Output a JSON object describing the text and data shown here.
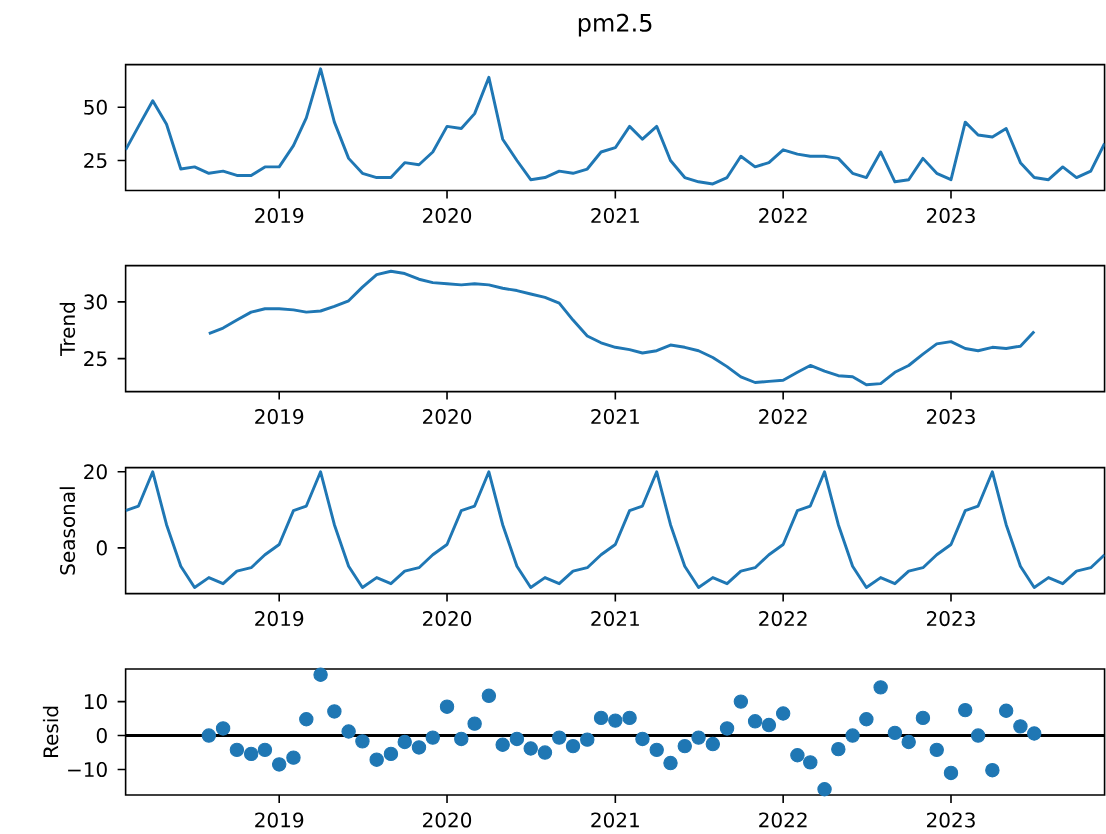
{
  "chart_data": [
    {
      "type": "line",
      "title": "pm2.5",
      "color": "#1f77b4",
      "x": [
        "2018-02",
        "2018-03",
        "2018-04",
        "2018-05",
        "2018-06",
        "2018-07",
        "2018-08",
        "2018-09",
        "2018-10",
        "2018-11",
        "2018-12",
        "2019-01",
        "2019-02",
        "2019-03",
        "2019-04",
        "2019-05",
        "2019-06",
        "2019-07",
        "2019-08",
        "2019-09",
        "2019-10",
        "2019-11",
        "2019-12",
        "2020-01",
        "2020-02",
        "2020-03",
        "2020-04",
        "2020-05",
        "2020-06",
        "2020-07",
        "2020-08",
        "2020-09",
        "2020-10",
        "2020-11",
        "2020-12",
        "2021-01",
        "2021-02",
        "2021-03",
        "2021-04",
        "2021-05",
        "2021-06",
        "2021-07",
        "2021-08",
        "2021-09",
        "2021-10",
        "2021-11",
        "2021-12",
        "2022-01",
        "2022-02",
        "2022-03",
        "2022-04",
        "2022-05",
        "2022-06",
        "2022-07",
        "2022-08",
        "2022-09",
        "2022-10",
        "2022-11",
        "2022-12",
        "2023-01",
        "2023-02",
        "2023-03",
        "2023-04",
        "2023-05",
        "2023-06",
        "2023-07",
        "2023-08",
        "2023-09",
        "2023-10",
        "2023-11",
        "2023-12"
      ],
      "values": [
        30,
        41,
        53,
        42,
        21,
        22,
        19,
        20,
        18,
        18,
        22,
        22,
        32,
        45,
        68,
        43,
        26,
        19,
        17,
        17,
        24,
        23,
        29,
        41,
        40,
        47,
        64,
        35,
        25,
        16,
        17,
        20,
        19,
        21,
        29,
        31,
        41,
        35,
        41,
        25,
        17,
        15,
        14,
        17,
        27,
        22,
        24,
        30,
        28,
        27,
        27,
        26,
        19,
        17,
        29,
        15,
        16,
        26,
        19,
        16,
        43,
        37,
        36,
        40,
        24,
        17,
        16,
        22,
        17,
        20,
        33
      ],
      "xlim": [
        "2018-02",
        "2023-12"
      ],
      "ylim": [
        10.9,
        70
      ],
      "xticks": [
        {
          "value": "2019-01",
          "label": "2019"
        },
        {
          "value": "2020-01",
          "label": "2020"
        },
        {
          "value": "2021-01",
          "label": "2021"
        },
        {
          "value": "2022-01",
          "label": "2022"
        },
        {
          "value": "2023-01",
          "label": "2023"
        }
      ],
      "yticks": [
        25,
        50
      ]
    },
    {
      "type": "line",
      "ylabel": "Trend",
      "color": "#1f77b4",
      "x": [
        "2018-08",
        "2018-09",
        "2018-10",
        "2018-11",
        "2018-12",
        "2019-01",
        "2019-02",
        "2019-03",
        "2019-04",
        "2019-05",
        "2019-06",
        "2019-07",
        "2019-08",
        "2019-09",
        "2019-10",
        "2019-11",
        "2019-12",
        "2020-01",
        "2020-02",
        "2020-03",
        "2020-04",
        "2020-05",
        "2020-06",
        "2020-07",
        "2020-08",
        "2020-09",
        "2020-10",
        "2020-11",
        "2020-12",
        "2021-01",
        "2021-02",
        "2021-03",
        "2021-04",
        "2021-05",
        "2021-06",
        "2021-07",
        "2021-08",
        "2021-09",
        "2021-10",
        "2021-11",
        "2021-12",
        "2022-01",
        "2022-02",
        "2022-03",
        "2022-04",
        "2022-05",
        "2022-06",
        "2022-07",
        "2022-08",
        "2022-09",
        "2022-10",
        "2022-11",
        "2022-12",
        "2023-01",
        "2023-02",
        "2023-03",
        "2023-04",
        "2023-05",
        "2023-06",
        "2023-07"
      ],
      "values": [
        27.2,
        27.7,
        28.4,
        29.1,
        29.4,
        29.4,
        29.3,
        29.1,
        29.2,
        29.6,
        30.1,
        31.3,
        32.4,
        32.7,
        32.5,
        32.0,
        31.7,
        31.6,
        31.5,
        31.6,
        31.5,
        31.2,
        31.0,
        30.7,
        30.4,
        29.9,
        28.4,
        27.0,
        26.4,
        26.0,
        25.8,
        25.5,
        25.7,
        26.2,
        26.0,
        25.7,
        25.1,
        24.3,
        23.4,
        22.9,
        23.0,
        23.1,
        23.8,
        24.4,
        23.9,
        23.5,
        23.4,
        22.7,
        22.8,
        23.8,
        24.4,
        25.4,
        26.3,
        26.5,
        25.9,
        25.7,
        26.0,
        25.9,
        26.1,
        27.4
      ],
      "xlim": [
        "2018-02",
        "2023-12"
      ],
      "ylim": [
        22.1,
        33.2
      ],
      "xticks": [
        {
          "value": "2019-01",
          "label": "2019"
        },
        {
          "value": "2020-01",
          "label": "2020"
        },
        {
          "value": "2021-01",
          "label": "2021"
        },
        {
          "value": "2022-01",
          "label": "2022"
        },
        {
          "value": "2023-01",
          "label": "2023"
        }
      ],
      "yticks": [
        25,
        30
      ]
    },
    {
      "type": "line",
      "ylabel": "Seasonal",
      "color": "#1f77b4",
      "x": [
        "2018-02",
        "2018-03",
        "2018-04",
        "2018-05",
        "2018-06",
        "2018-07",
        "2018-08",
        "2018-09",
        "2018-10",
        "2018-11",
        "2018-12",
        "2019-01",
        "2019-02",
        "2019-03",
        "2019-04",
        "2019-05",
        "2019-06",
        "2019-07",
        "2019-08",
        "2019-09",
        "2019-10",
        "2019-11",
        "2019-12",
        "2020-01",
        "2020-02",
        "2020-03",
        "2020-04",
        "2020-05",
        "2020-06",
        "2020-07",
        "2020-08",
        "2020-09",
        "2020-10",
        "2020-11",
        "2020-12",
        "2021-01",
        "2021-02",
        "2021-03",
        "2021-04",
        "2021-05",
        "2021-06",
        "2021-07",
        "2021-08",
        "2021-09",
        "2021-10",
        "2021-11",
        "2021-12",
        "2022-01",
        "2022-02",
        "2022-03",
        "2022-04",
        "2022-05",
        "2022-06",
        "2022-07",
        "2022-08",
        "2022-09",
        "2022-10",
        "2022-11",
        "2022-12",
        "2023-01",
        "2023-02",
        "2023-03",
        "2023-04",
        "2023-05",
        "2023-06",
        "2023-07",
        "2023-08",
        "2023-09",
        "2023-10",
        "2023-11",
        "2023-12"
      ],
      "values": [
        9.8,
        11,
        20,
        6.1,
        -4.8,
        -10.4,
        -7.8,
        -9.4,
        -6.1,
        -5.2,
        -1.8,
        0.9,
        9.8,
        11,
        20,
        6.1,
        -4.8,
        -10.4,
        -7.8,
        -9.4,
        -6.1,
        -5.2,
        -1.8,
        0.9,
        9.8,
        11,
        20,
        6.1,
        -4.8,
        -10.4,
        -7.8,
        -9.4,
        -6.1,
        -5.2,
        -1.8,
        0.9,
        9.8,
        11,
        20,
        6.1,
        -4.8,
        -10.4,
        -7.8,
        -9.4,
        -6.1,
        -5.2,
        -1.8,
        0.9,
        9.8,
        11,
        20,
        6.1,
        -4.8,
        -10.4,
        -7.8,
        -9.4,
        -6.1,
        -5.2,
        -1.8,
        0.9,
        9.8,
        11,
        20,
        6.1,
        -4.8,
        -10.4,
        -7.8,
        -9.4,
        -6.1,
        -5.2,
        -1.8
      ],
      "xlim": [
        "2018-02",
        "2023-12"
      ],
      "ylim": [
        -12,
        21.1
      ],
      "xticks": [
        {
          "value": "2019-01",
          "label": "2019"
        },
        {
          "value": "2020-01",
          "label": "2020"
        },
        {
          "value": "2021-01",
          "label": "2021"
        },
        {
          "value": "2022-01",
          "label": "2022"
        },
        {
          "value": "2023-01",
          "label": "2023"
        }
      ],
      "yticks": [
        0,
        20
      ]
    },
    {
      "type": "scatter",
      "ylabel": "Resid",
      "color": "#1f77b4",
      "x": [
        "2018-08",
        "2018-09",
        "2018-10",
        "2018-11",
        "2018-12",
        "2019-01",
        "2019-02",
        "2019-03",
        "2019-04",
        "2019-05",
        "2019-06",
        "2019-07",
        "2019-08",
        "2019-09",
        "2019-10",
        "2019-11",
        "2019-12",
        "2020-01",
        "2020-02",
        "2020-03",
        "2020-04",
        "2020-05",
        "2020-06",
        "2020-07",
        "2020-08",
        "2020-09",
        "2020-10",
        "2020-11",
        "2020-12",
        "2021-01",
        "2021-02",
        "2021-03",
        "2021-04",
        "2021-05",
        "2021-06",
        "2021-07",
        "2021-08",
        "2021-09",
        "2021-10",
        "2021-11",
        "2021-12",
        "2022-01",
        "2022-02",
        "2022-03",
        "2022-04",
        "2022-05",
        "2022-06",
        "2022-07",
        "2022-08",
        "2022-09",
        "2022-10",
        "2022-11",
        "2022-12",
        "2023-01",
        "2023-02",
        "2023-03",
        "2023-04",
        "2023-05",
        "2023-06",
        "2023-07"
      ],
      "values": [
        0,
        2.1,
        -4.2,
        -5.4,
        -4.2,
        -8.5,
        -6.5,
        4.8,
        17.9,
        7.1,
        1.2,
        -1.7,
        -7.1,
        -5.4,
        -1.9,
        -3.5,
        -0.6,
        8.5,
        -1.0,
        3.5,
        11.7,
        -2.7,
        -1.0,
        -3.8,
        -5.0,
        -0.6,
        -3.1,
        -1.2,
        5.2,
        4.4,
        5.2,
        -1.0,
        -4.2,
        -8.1,
        -3.1,
        -0.6,
        -2.5,
        2.1,
        10.0,
        4.2,
        3.1,
        6.5,
        -5.8,
        -7.9,
        -15.8,
        -4.0,
        0,
        4.8,
        14.2,
        0.8,
        -1.9,
        5.2,
        -4.2,
        -11.0,
        7.5,
        0,
        -10.2,
        7.3,
        2.7,
        0.6
      ],
      "xlim": [
        "2018-02",
        "2023-12"
      ],
      "ylim": [
        -17.5,
        19.6
      ],
      "xticks": [
        {
          "value": "2019-01",
          "label": "2019"
        },
        {
          "value": "2020-01",
          "label": "2020"
        },
        {
          "value": "2021-01",
          "label": "2021"
        },
        {
          "value": "2022-01",
          "label": "2022"
        },
        {
          "value": "2023-01",
          "label": "2023"
        }
      ],
      "yticks": [
        {
          "value": -10,
          "label": "−10"
        },
        0,
        10
      ],
      "ref_lines": [
        {
          "axis": "y",
          "value": 0,
          "color": "#000000"
        }
      ]
    }
  ]
}
